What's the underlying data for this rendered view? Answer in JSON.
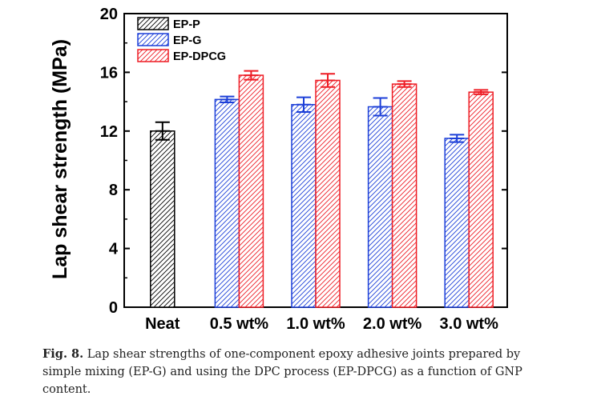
{
  "chart_data": {
    "type": "bar",
    "categories": [
      "Neat",
      "0.5 wt%",
      "1.0 wt%",
      "2.0 wt%",
      "3.0 wt%"
    ],
    "series": [
      {
        "name": "EP-P",
        "color": "#000000",
        "values": [
          12.0,
          null,
          null,
          null,
          null
        ],
        "errors": [
          0.6,
          null,
          null,
          null,
          null
        ]
      },
      {
        "name": "EP-G",
        "color": "#1c3fd8",
        "values": [
          null,
          14.15,
          13.8,
          13.65,
          11.5
        ],
        "errors": [
          null,
          0.2,
          0.5,
          0.6,
          0.25
        ]
      },
      {
        "name": "EP-DPCG",
        "color": "#ee1c24",
        "values": [
          null,
          15.8,
          15.45,
          15.2,
          14.65
        ],
        "errors": [
          null,
          0.3,
          0.45,
          0.2,
          0.15
        ]
      }
    ],
    "ylabel": "Lap shear strength (MPa)",
    "xlabel": "",
    "ylim": [
      0,
      20
    ],
    "yticks": [
      "0",
      "4",
      "8",
      "12",
      "16",
      "20"
    ],
    "legend_position": "top-left",
    "grid": false,
    "hatch": "diagonal"
  },
  "caption": {
    "label": "Fig. 8.",
    "text": "Lap shear strengths of one-component epoxy adhesive joints prepared by simple mixing (EP-G) and using the DPC process (EP-DPCG) as a function of GNP content."
  }
}
